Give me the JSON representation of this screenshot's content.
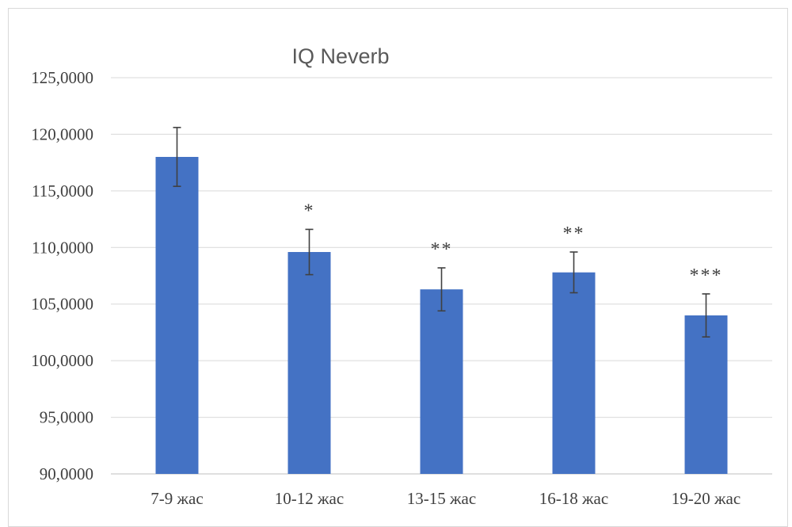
{
  "chart_data": {
    "type": "bar",
    "title": "IQ Neverb",
    "xlabel": "",
    "ylabel": "",
    "categories": [
      "7-9 жас",
      "10-12 жас",
      "13-15 жас",
      "16-18 жас",
      "19-20 жас"
    ],
    "values": [
      118.0,
      109.6,
      106.3,
      107.8,
      104.0
    ],
    "error_low": [
      115.4,
      107.6,
      104.4,
      106.0,
      102.1
    ],
    "error_high": [
      120.6,
      111.6,
      108.2,
      109.6,
      105.9
    ],
    "significance": [
      "",
      "*",
      "**",
      "**",
      "***"
    ],
    "ylim": [
      90,
      125
    ],
    "yticks": [
      90,
      95,
      100,
      105,
      110,
      115,
      120,
      125
    ],
    "ytick_labels": [
      "90,0000",
      "95,0000",
      "100,0000",
      "105,0000",
      "110,0000",
      "115,0000",
      "120,0000",
      "125,0000"
    ],
    "grid": true,
    "legend": "none",
    "bar_color": "#4472C4",
    "error_bar_color": "#404040"
  }
}
